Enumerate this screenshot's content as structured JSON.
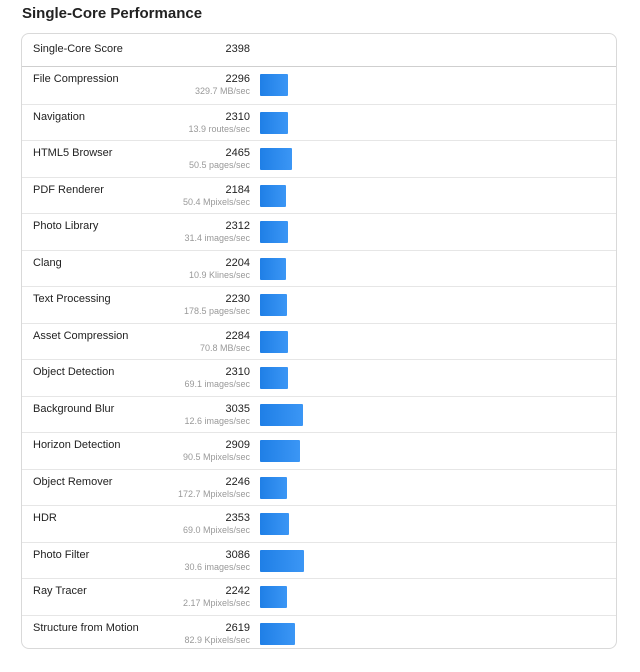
{
  "title": "Single-Core Performance",
  "summary": {
    "label": "Single-Core Score",
    "value": "2398"
  },
  "accent_color": "#2589ee",
  "benchmarks": [
    {
      "name": "File Compression",
      "score": 2296,
      "rate": "329.7 MB/sec"
    },
    {
      "name": "Navigation",
      "score": 2310,
      "rate": "13.9 routes/sec"
    },
    {
      "name": "HTML5 Browser",
      "score": 2465,
      "rate": "50.5 pages/sec"
    },
    {
      "name": "PDF Renderer",
      "score": 2184,
      "rate": "50.4 Mpixels/sec"
    },
    {
      "name": "Photo Library",
      "score": 2312,
      "rate": "31.4 images/sec"
    },
    {
      "name": "Clang",
      "score": 2204,
      "rate": "10.9 Klines/sec"
    },
    {
      "name": "Text Processing",
      "score": 2230,
      "rate": "178.5 pages/sec"
    },
    {
      "name": "Asset Compression",
      "score": 2284,
      "rate": "70.8 MB/sec"
    },
    {
      "name": "Object Detection",
      "score": 2310,
      "rate": "69.1 images/sec"
    },
    {
      "name": "Background Blur",
      "score": 3035,
      "rate": "12.6 images/sec"
    },
    {
      "name": "Horizon Detection",
      "score": 2909,
      "rate": "90.5 Mpixels/sec"
    },
    {
      "name": "Object Remover",
      "score": 2246,
      "rate": "172.7 Mpixels/sec"
    },
    {
      "name": "HDR",
      "score": 2353,
      "rate": "69.0 Mpixels/sec"
    },
    {
      "name": "Photo Filter",
      "score": 3086,
      "rate": "30.6 images/sec"
    },
    {
      "name": "Ray Tracer",
      "score": 2242,
      "rate": "2.17 Mpixels/sec"
    },
    {
      "name": "Structure from Motion",
      "score": 2619,
      "rate": "82.9 Kpixels/sec"
    }
  ]
}
